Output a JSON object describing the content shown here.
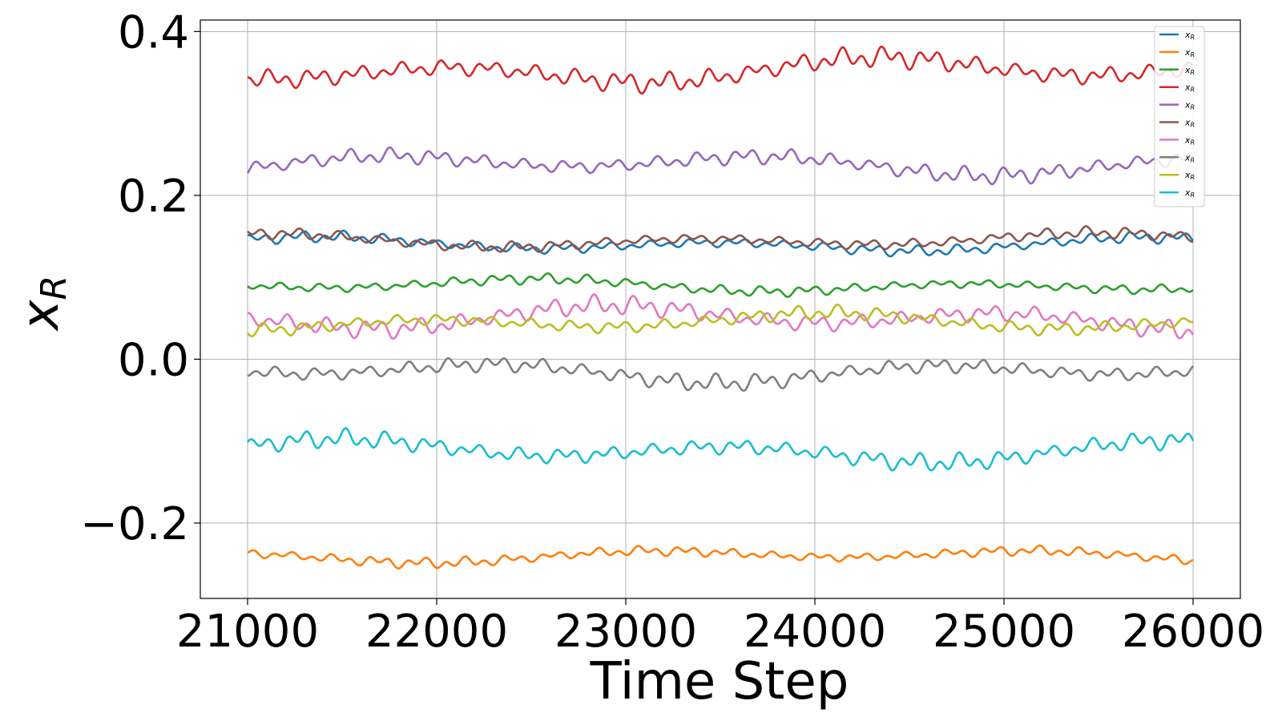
{
  "chart_data": {
    "type": "line",
    "xlabel": "Time Step",
    "ylabel": "x_R",
    "xlim": [
      20750,
      26250
    ],
    "ylim": [
      -0.292,
      0.414
    ],
    "xticks": [
      {
        "value": 21000,
        "label": "21000"
      },
      {
        "value": 22000,
        "label": "22000"
      },
      {
        "value": 23000,
        "label": "23000"
      },
      {
        "value": 24000,
        "label": "24000"
      },
      {
        "value": 25000,
        "label": "25000"
      },
      {
        "value": 26000,
        "label": "26000"
      }
    ],
    "yticks": [
      {
        "value": -0.2,
        "label": "−0.2"
      },
      {
        "value": 0.0,
        "label": "0.0"
      },
      {
        "value": 0.2,
        "label": "0.2"
      },
      {
        "value": 0.4,
        "label": "0.4"
      }
    ],
    "grid": true,
    "legend_position": "top-right",
    "series": [
      {
        "name": "x_R",
        "color": "#1f77b4",
        "base": 0.14,
        "amp": 0.016,
        "kind": "osc",
        "x_start": 21000,
        "x_end": 26000
      },
      {
        "name": "x_R",
        "color": "#ff7f0e",
        "base": -0.24,
        "amp": 0.015,
        "kind": "osc",
        "x_start": 21000,
        "x_end": 26000
      },
      {
        "name": "x_R",
        "color": "#2ca02c",
        "base": 0.09,
        "amp": 0.015,
        "kind": "osc",
        "x_start": 21000,
        "x_end": 26000
      },
      {
        "name": "x_R",
        "color": "#d62728",
        "base": 0.352,
        "amp": 0.03,
        "kind": "osc",
        "x_start": 21000,
        "x_end": 26000
      },
      {
        "name": "x_R",
        "color": "#9467bd",
        "base": 0.238,
        "amp": 0.024,
        "kind": "osc",
        "x_start": 21000,
        "x_end": 26000
      },
      {
        "name": "x_R",
        "color": "#8c564b",
        "base": 0.145,
        "amp": 0.016,
        "kind": "osc",
        "x_start": 21000,
        "x_end": 26000
      },
      {
        "name": "x_R",
        "color": "#e377c2",
        "base": 0.05,
        "amp": 0.028,
        "kind": "osc",
        "x_start": 21000,
        "x_end": 26000
      },
      {
        "name": "x_R",
        "color": "#7f7f7f",
        "base": -0.015,
        "amp": 0.024,
        "kind": "osc",
        "x_start": 21000,
        "x_end": 26000
      },
      {
        "name": "x_R",
        "color": "#bcbd22",
        "base": 0.045,
        "amp": 0.02,
        "kind": "osc",
        "x_start": 21000,
        "x_end": 26000
      },
      {
        "name": "x_R",
        "color": "#17becf",
        "base": -0.112,
        "amp": 0.026,
        "kind": "osc",
        "x_start": 21000,
        "x_end": 26000
      }
    ]
  }
}
